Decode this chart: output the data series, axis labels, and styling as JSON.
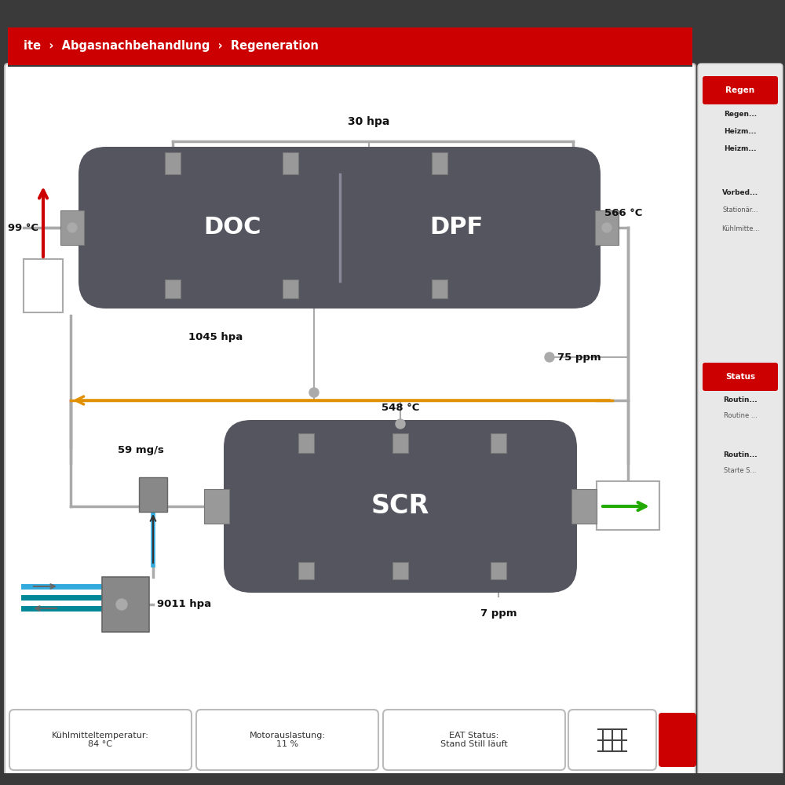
{
  "fig_w": 10.0,
  "fig_h": 10.0,
  "dpi": 100,
  "outer_bg": "#3a3a3a",
  "main_bg": "#ffffff",
  "main_border": "#bbbbbb",
  "header_dark": "#3a3a3a",
  "header_red": "#cc0000",
  "header_text": "ite  ›  Abgasnachbehandlung  ›  Regeneration",
  "sidebar_bg": "#e8e8e8",
  "sidebar_border": "#cccccc",
  "component_color": "#555560",
  "pipe_color": "#aaaaaa",
  "connector_color": "#999999",
  "connector_border": "#777777",
  "text_color": "#111111",
  "orange_color": "#e09000",
  "green_color": "#22aa00",
  "red_color": "#cc0000",
  "blue_color": "#33aadd",
  "teal_color": "#008899",
  "doc_label": "DOC",
  "dpf_label": "DPF",
  "scr_label": "SCR",
  "meas_30hpa": "30 hpa",
  "meas_99c": "99 °C",
  "meas_566c": "566 °C",
  "meas_1045hpa": "1045 hpa",
  "meas_75ppm": "75 ppm",
  "meas_548c": "548 °C",
  "meas_59mgs": "59 mg/s",
  "meas_9011hpa": "9011 hpa",
  "meas_7ppm": "7 ppm",
  "status_boxes": [
    "Kühlmitteltemperatur:\n84 °C",
    "Motorauslastung:\n11 %",
    "EAT Status:\nStand Still läuft"
  ],
  "rp_regen_items": [
    "Regen...",
    "Heizm...",
    "Heizm..."
  ],
  "rp_vorbed": "Vorbed...",
  "rp_station": "Stationär...",
  "rp_kuhl": "Kühlmitte...",
  "rp_routin1": "Routin...",
  "rp_routine1": "Routine ...",
  "rp_routin2": "Routin...",
  "rp_starte": "Starte S..."
}
